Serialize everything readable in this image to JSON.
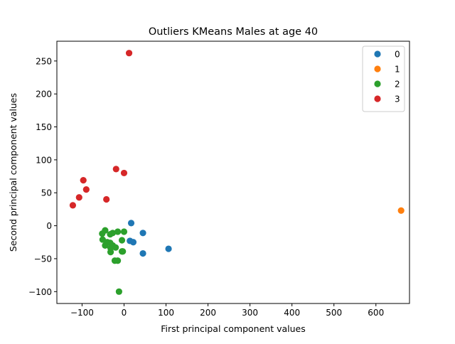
{
  "chart_data": {
    "type": "scatter",
    "title": "Outliers KMeans Males at age 40",
    "xlabel": "First principal component values",
    "ylabel": "Second principal component values",
    "xlim": [
      -160,
      680
    ],
    "ylim": [
      -118,
      280
    ],
    "xticks": [
      -100,
      0,
      100,
      200,
      300,
      400,
      500,
      600
    ],
    "yticks": [
      -100,
      -50,
      0,
      50,
      100,
      150,
      200,
      250
    ],
    "xtick_labels": [
      "−100",
      "0",
      "100",
      "200",
      "300",
      "400",
      "500",
      "600"
    ],
    "ytick_labels": [
      "−100",
      "−50",
      "0",
      "50",
      "100",
      "150",
      "200",
      "250"
    ],
    "grid": false,
    "legend_position": "top-right",
    "series": [
      {
        "name": "0",
        "color": "#1f77b4",
        "points": [
          [
            17,
            4
          ],
          [
            45,
            -11
          ],
          [
            14,
            -23
          ],
          [
            22,
            -25
          ],
          [
            45,
            -42
          ],
          [
            106,
            -35
          ]
        ]
      },
      {
        "name": "1",
        "color": "#ff7f0e",
        "points": [
          [
            660,
            23
          ]
        ]
      },
      {
        "name": "2",
        "color": "#2ca02c",
        "points": [
          [
            -45,
            -7
          ],
          [
            -52,
            -12
          ],
          [
            -33,
            -13
          ],
          [
            -27,
            -11
          ],
          [
            -15,
            -9
          ],
          [
            0,
            -9
          ],
          [
            -51,
            -21
          ],
          [
            -40,
            -25
          ],
          [
            -33,
            -26
          ],
          [
            -27,
            -30
          ],
          [
            -20,
            -33
          ],
          [
            -45,
            -30
          ],
          [
            -32,
            -34
          ],
          [
            -32,
            -40
          ],
          [
            -5,
            -22
          ],
          [
            -5,
            -39
          ],
          [
            -3,
            -39
          ],
          [
            -22,
            -53
          ],
          [
            -15,
            -53
          ],
          [
            -12,
            -100
          ]
        ]
      },
      {
        "name": "3",
        "color": "#d62728",
        "points": [
          [
            12,
            262
          ],
          [
            -19,
            86
          ],
          [
            0,
            80
          ],
          [
            -97,
            69
          ],
          [
            -90,
            55
          ],
          [
            -107,
            43
          ],
          [
            -42,
            40
          ],
          [
            -122,
            31
          ]
        ]
      }
    ]
  }
}
